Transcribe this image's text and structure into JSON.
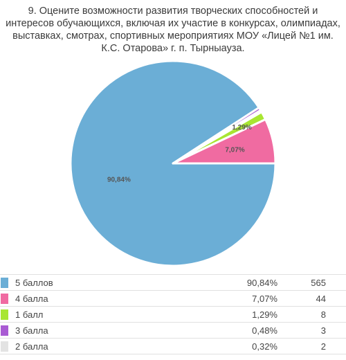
{
  "chart_data": {
    "type": "pie",
    "title": "9. Оцените возможности развития творческих способностей и интересов обучающихся, включая их участие в конкурсах, олимпиадах, выставках, смотрах, спортивных мероприятиях МОУ «Лицей №1 им. К.С. Отарова» г. п. Тырныауза.",
    "slices": [
      {
        "label": "5 баллов",
        "percent_label": "90,84%",
        "percent": 90.84,
        "count": 565,
        "color": "#6baed6",
        "show_label": true
      },
      {
        "label": "4 балла",
        "percent_label": "7,07%",
        "percent": 7.07,
        "count": 44,
        "color": "#f06ba1",
        "show_label": true
      },
      {
        "label": "1 балл",
        "percent_label": "1,29%",
        "percent": 1.29,
        "count": 8,
        "color": "#a8e632",
        "show_label": true
      },
      {
        "label": "3 балла",
        "percent_label": "0,48%",
        "percent": 0.48,
        "count": 3,
        "color": "#a95bd3",
        "show_label": false
      },
      {
        "label": "2 балла",
        "percent_label": "0,32%",
        "percent": 0.32,
        "count": 2,
        "color": "#e3e3e3",
        "show_label": false
      }
    ],
    "pie_order": [
      0,
      3,
      4,
      2,
      1
    ],
    "legend_placement": "bottom-table"
  }
}
